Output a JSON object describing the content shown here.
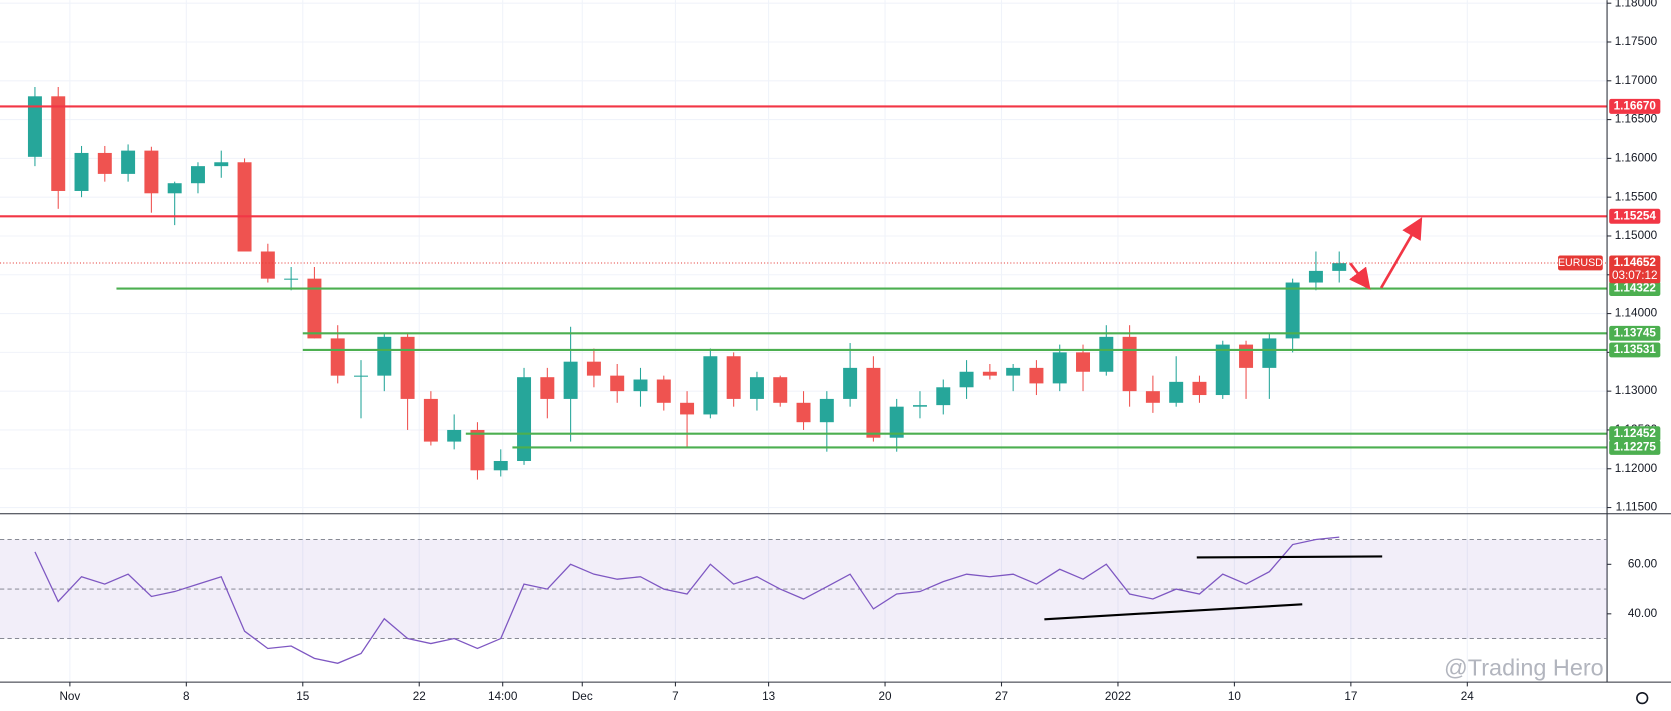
{
  "chart_data": {
    "type": "candlestick",
    "symbol": "EURUSD",
    "watermark": "@Trading Hero",
    "up_color": "#26a69a",
    "down_color": "#ef5350",
    "grid": true,
    "x": [
      "2021-10-28",
      "2021-10-29",
      "2021-11-01",
      "2021-11-02",
      "2021-11-03",
      "2021-11-04",
      "2021-11-05",
      "2021-11-08",
      "2021-11-09",
      "2021-11-10",
      "2021-11-11",
      "2021-11-12",
      "2021-11-15",
      "2021-11-16",
      "2021-11-17",
      "2021-11-18",
      "2021-11-19",
      "2021-11-22",
      "2021-11-23",
      "2021-11-24",
      "2021-11-25",
      "2021-11-26",
      "2021-11-29",
      "2021-11-30",
      "2021-12-01",
      "2021-12-02",
      "2021-12-03",
      "2021-12-06",
      "2021-12-07",
      "2021-12-08",
      "2021-12-09",
      "2021-12-10",
      "2021-12-13",
      "2021-12-14",
      "2021-12-15",
      "2021-12-16",
      "2021-12-17",
      "2021-12-20",
      "2021-12-21",
      "2021-12-22",
      "2021-12-23",
      "2021-12-24",
      "2021-12-27",
      "2021-12-28",
      "2021-12-29",
      "2021-12-30",
      "2021-12-31",
      "2022-01-03",
      "2022-01-04",
      "2022-01-05",
      "2022-01-06",
      "2022-01-07",
      "2022-01-10",
      "2022-01-11",
      "2022-01-12",
      "2022-01-13",
      "2022-01-14"
    ],
    "open": [
      1.1602,
      1.168,
      1.1558,
      1.1607,
      1.158,
      1.161,
      1.1555,
      1.1568,
      1.159,
      1.1595,
      1.148,
      1.1445,
      1.1445,
      1.1368,
      1.132,
      1.132,
      1.137,
      1.129,
      1.1235,
      1.125,
      1.1198,
      1.121,
      1.1318,
      1.129,
      1.1338,
      1.132,
      1.13,
      1.1315,
      1.1285,
      1.127,
      1.1345,
      1.129,
      1.1318,
      1.1285,
      1.126,
      1.129,
      1.133,
      1.124,
      1.128,
      1.1282,
      1.1305,
      1.1325,
      1.132,
      1.133,
      1.131,
      1.135,
      1.1325,
      1.137,
      1.13,
      1.1285,
      1.1312,
      1.1295,
      1.136,
      1.133,
      1.1368,
      1.144,
      1.1455
    ],
    "high": [
      1.1692,
      1.1692,
      1.1616,
      1.1616,
      1.1618,
      1.1615,
      1.157,
      1.1595,
      1.161,
      1.16,
      1.149,
      1.146,
      1.146,
      1.1385,
      1.134,
      1.1375,
      1.1375,
      1.13,
      1.127,
      1.126,
      1.1225,
      1.133,
      1.133,
      1.1383,
      1.1355,
      1.1335,
      1.133,
      1.132,
      1.13,
      1.1355,
      1.135,
      1.1325,
      1.132,
      1.13,
      1.13,
      1.1362,
      1.1345,
      1.129,
      1.13,
      1.1315,
      1.134,
      1.1335,
      1.1335,
      1.134,
      1.136,
      1.136,
      1.1385,
      1.1385,
      1.132,
      1.1345,
      1.132,
      1.1365,
      1.1365,
      1.1375,
      1.1445,
      1.148,
      1.148
    ],
    "low": [
      1.159,
      1.1535,
      1.155,
      1.157,
      1.157,
      1.153,
      1.1514,
      1.1555,
      1.1575,
      1.148,
      1.144,
      1.143,
      1.1368,
      1.131,
      1.1265,
      1.13,
      1.125,
      1.123,
      1.1225,
      1.1186,
      1.119,
      1.1205,
      1.1265,
      1.1235,
      1.1305,
      1.1285,
      1.128,
      1.1275,
      1.1227,
      1.1265,
      1.128,
      1.1275,
      1.128,
      1.125,
      1.1222,
      1.128,
      1.1235,
      1.1222,
      1.1265,
      1.127,
      1.129,
      1.1315,
      1.13,
      1.1295,
      1.13,
      1.13,
      1.132,
      1.128,
      1.1272,
      1.128,
      1.1285,
      1.129,
      1.129,
      1.129,
      1.135,
      1.143,
      1.144
    ],
    "close": [
      1.168,
      1.1558,
      1.1607,
      1.158,
      1.161,
      1.1555,
      1.1568,
      1.159,
      1.1595,
      1.148,
      1.1445,
      1.1445,
      1.1368,
      1.132,
      1.132,
      1.137,
      1.129,
      1.1235,
      1.125,
      1.1198,
      1.121,
      1.1318,
      1.129,
      1.1338,
      1.132,
      1.13,
      1.1315,
      1.1285,
      1.127,
      1.1345,
      1.129,
      1.1318,
      1.1285,
      1.126,
      1.129,
      1.133,
      1.124,
      1.128,
      1.1282,
      1.1305,
      1.1325,
      1.132,
      1.133,
      1.131,
      1.135,
      1.1325,
      1.137,
      1.13,
      1.1285,
      1.1312,
      1.1295,
      1.136,
      1.133,
      1.1368,
      1.144,
      1.1455,
      1.1465
    ],
    "xlim": [
      "2021-10-27",
      "2022-02-01"
    ],
    "xticks": [
      {
        "value": "2021-11-01",
        "label": "Nov"
      },
      {
        "value": "2021-11-08",
        "label": "8"
      },
      {
        "value": "2021-11-15",
        "label": "15"
      },
      {
        "value": "2021-11-22",
        "label": "22"
      },
      {
        "value": "2021-11-25T14:00Z",
        "label": "14:00"
      },
      {
        "value": "2021-12-01",
        "label": "Dec"
      },
      {
        "value": "2021-12-07",
        "label": "7"
      },
      {
        "value": "2021-12-13",
        "label": "13"
      },
      {
        "value": "2021-12-20",
        "label": "20"
      },
      {
        "value": "2021-12-27",
        "label": "27"
      },
      {
        "value": "2022-01-03",
        "label": "2022"
      },
      {
        "value": "2022-01-10",
        "label": "10"
      },
      {
        "value": "2022-01-17",
        "label": "17"
      },
      {
        "value": "2022-01-24",
        "label": "24"
      }
    ],
    "ylim": [
      1.1142,
      1.1804
    ],
    "yticks": [
      {
        "value": 1.115,
        "label": "1.11500"
      },
      {
        "value": 1.12,
        "label": "1.12000"
      },
      {
        "value": 1.125,
        "label": "1.12500"
      },
      {
        "value": 1.13,
        "label": "1.13000"
      },
      {
        "value": 1.135,
        "label": "1.13500"
      },
      {
        "value": 1.14,
        "label": "1.14000"
      },
      {
        "value": 1.145,
        "label": "1.14500"
      },
      {
        "value": 1.15,
        "label": "1.15000"
      },
      {
        "value": 1.155,
        "label": "1.15500"
      },
      {
        "value": 1.16,
        "label": "1.16000"
      },
      {
        "value": 1.165,
        "label": "1.16500"
      },
      {
        "value": 1.17,
        "label": "1.17000"
      },
      {
        "value": 1.175,
        "label": "1.17500"
      },
      {
        "value": 1.18,
        "label": "1.18000"
      }
    ],
    "levels": [
      {
        "value": 1.1667,
        "label": "1.16670",
        "color": "#f23645"
      },
      {
        "value": 1.15254,
        "label": "1.15254",
        "color": "#f23645"
      },
      {
        "value": 1.14322,
        "label": "1.14322",
        "color": "#4caf50",
        "start": "2021-11-03"
      },
      {
        "value": 1.13745,
        "label": "1.13745",
        "color": "#4caf50",
        "start": "2021-11-15"
      },
      {
        "value": 1.13531,
        "label": "1.13531",
        "color": "#4caf50",
        "start": "2021-11-15"
      },
      {
        "value": 1.12452,
        "label": "1.12452",
        "color": "#4caf50",
        "start": "2021-11-24"
      },
      {
        "value": 1.12275,
        "label": "1.12275",
        "color": "#4caf50",
        "start": "2021-11-26"
      }
    ],
    "last": {
      "value": 1.14652,
      "label": "1.14652",
      "countdown": "03:07:12",
      "color": "#e53935"
    },
    "rsi": {
      "color": "#7e57c2",
      "values": [
        65,
        45,
        55,
        52,
        56,
        47,
        49,
        52,
        55,
        33,
        26,
        27,
        22,
        20,
        24,
        38,
        30,
        28,
        30,
        26,
        30,
        52,
        50,
        60,
        56,
        54,
        55,
        50,
        48,
        60,
        52,
        55,
        50,
        46,
        51,
        56,
        42,
        48,
        49,
        53,
        56,
        55,
        56,
        52,
        58,
        54,
        60,
        48,
        46,
        50,
        48,
        56,
        52,
        57,
        68,
        70,
        71
      ],
      "ylim": [
        12.4,
        80
      ],
      "yticks": [
        {
          "value": 40,
          "label": "40.00"
        },
        {
          "value": 60,
          "label": "60.00"
        }
      ],
      "levels": [
        30,
        50,
        70
      ]
    }
  }
}
